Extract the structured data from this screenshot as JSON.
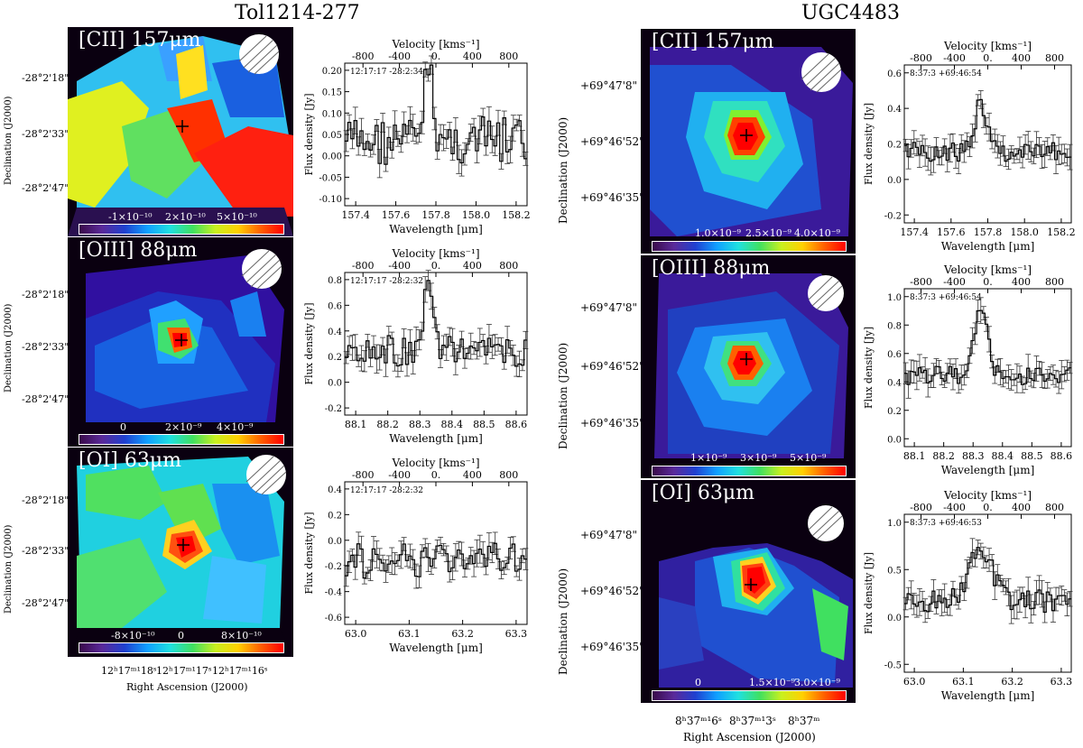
{
  "titles": {
    "left": "Tol1214-277",
    "right": "UGC4483"
  },
  "axes": {
    "declination": "Declination (J2000)",
    "right_ascension": "Right Ascension (J2000)",
    "velocity": "Velocity [kms⁻¹]",
    "wavelength": "Wavelength [μm]",
    "flux": "Flux density [Jy]"
  },
  "left": {
    "dec_ticks": [
      "-28°2'18\"",
      "-28°2'33\"",
      "-28°2'47\""
    ],
    "ra_ticks": [
      "12ʰ17ᵐ¹18ˢ",
      "12ʰ17ᵐ¹17ˢ",
      "12ʰ17ᵐ¹16ˢ"
    ],
    "panels": [
      {
        "line": "[CII] 157μm",
        "cbar": [
          "-1×10⁻¹⁰",
          "2×10⁻¹⁰",
          "5×10⁻¹⁰"
        ],
        "coord": "12:17:17 -28:2:34",
        "vel_ticks": [
          "-800",
          "-400",
          "0.",
          "400",
          "800"
        ],
        "wav_ticks": [
          "157.4",
          "157.6",
          "157.8",
          "158.0",
          "158.2"
        ],
        "flux_ticks": [
          "0.20",
          "0.15",
          "0.10",
          "0.05",
          "0.00",
          "-0.05",
          "-0.10"
        ]
      },
      {
        "line": "[OIII] 88μm",
        "cbar": [
          "0",
          "2×10⁻⁹",
          "4×10⁻⁹"
        ],
        "coord": "12:17:17 -28:2:32",
        "vel_ticks": [
          "-800",
          "-400",
          "0.",
          "400",
          "800"
        ],
        "wav_ticks": [
          "88.1",
          "88.2",
          "88.3",
          "88.4",
          "88.5",
          "88.6"
        ],
        "flux_ticks": [
          "0.8",
          "0.6",
          "0.4",
          "0.2",
          "0.0",
          "-0.2"
        ]
      },
      {
        "line": "[OI] 63μm",
        "cbar": [
          "-8×10⁻¹⁰",
          "0",
          "8×10⁻¹⁰"
        ],
        "coord": "12:17:17 -28:2:32",
        "vel_ticks": [
          "-800",
          "-400",
          "0.",
          "400",
          "800"
        ],
        "wav_ticks": [
          "63.0",
          "63.1",
          "63.2",
          "63.3"
        ],
        "flux_ticks": [
          "0.4",
          "0.2",
          "0.0",
          "-0.2",
          "-0.4",
          "-0.6"
        ]
      }
    ]
  },
  "right": {
    "dec_ticks": [
      "+69°47'8\"",
      "+69°46'52\"",
      "+69°46'35\""
    ],
    "ra_ticks": [
      "8ʰ37ᵐ¹6ˢ",
      "8ʰ37ᵐ¹3ˢ",
      "8ʰ37ᵐ"
    ],
    "panels": [
      {
        "line": "[CII] 157μm",
        "cbar": [
          "1.0×10⁻⁹",
          "2.5×10⁻⁹",
          "4.0×10⁻⁹"
        ],
        "coord": "8:37:3 +69:46:54",
        "vel_ticks": [
          "-800",
          "-400",
          "0.",
          "400",
          "800"
        ],
        "wav_ticks": [
          "157.4",
          "157.6",
          "157.8",
          "158.0",
          "158.2"
        ],
        "flux_ticks": [
          "0.6",
          "0.4",
          "0.2",
          "0.0",
          "-0.2"
        ]
      },
      {
        "line": "[OIII] 88μm",
        "cbar": [
          "1×10⁻⁹",
          "3×10⁻⁹",
          "5×10⁻⁹"
        ],
        "coord": "8:37:3 +69:46:54",
        "vel_ticks": [
          "-800",
          "-400",
          "0.",
          "400",
          "800"
        ],
        "wav_ticks": [
          "88.1",
          "88.2",
          "88.3",
          "88.4",
          "88.5",
          "88.6"
        ],
        "flux_ticks": [
          "1.0",
          "0.8",
          "0.6",
          "0.4",
          "0.2",
          "0.0"
        ]
      },
      {
        "line": "[OI] 63μm",
        "cbar": [
          "0",
          "1.5×10⁻⁹",
          "3.0×10⁻⁹"
        ],
        "coord": "8:37:3 +69:46:53",
        "vel_ticks": [
          "-800",
          "-400",
          "0.",
          "400",
          "800"
        ],
        "wav_ticks": [
          "63.0",
          "63.1",
          "63.2",
          "63.3"
        ],
        "flux_ticks": [
          "1.0",
          "0.5",
          "0.0",
          "-0.5"
        ]
      }
    ]
  }
}
